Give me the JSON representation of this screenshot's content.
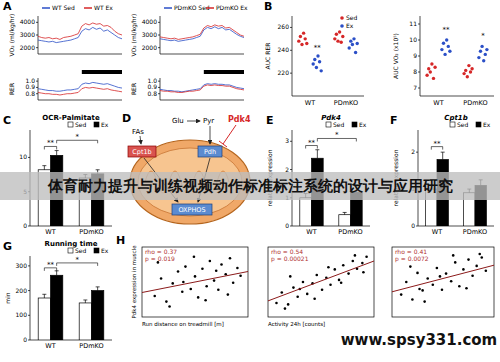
{
  "overlay": {
    "banner": "体育耐力提升与训练视频动作标准标注系统的设计与应用研究",
    "watermark": "www.spsy331.com"
  },
  "diagram": {
    "panel": "D",
    "fas": "FAs",
    "glu": "Glu",
    "pyr": "Pyr",
    "pdk4": "Pdk4",
    "cpt1b": "Cpt1b",
    "pdh": "Pdh",
    "oxphos": "OXPHOS"
  },
  "chart_data": [
    {
      "type": "line",
      "panel": "A",
      "y_label": "VO₂ (ml/kg/hr)",
      "x": [
        0,
        1,
        2,
        3,
        4,
        5,
        6,
        7,
        8,
        9,
        10,
        11,
        12,
        13,
        14,
        15,
        16,
        17,
        18,
        19,
        20,
        21,
        22,
        23
      ],
      "xlim": [
        0,
        23
      ],
      "ylim": [
        1500,
        4500
      ],
      "yticks": [
        2000,
        3000,
        4000
      ],
      "tick_labels": "y",
      "legend": "top",
      "series": [
        {
          "name": "WT Sed",
          "color": "#2b4fc7",
          "values": [
            2600,
            2550,
            2500,
            2450,
            2500,
            2400,
            2450,
            2500,
            2550,
            2600,
            2700,
            2800,
            3300,
            3500,
            3400,
            3600,
            3450,
            3550,
            3300,
            3400,
            3200,
            3000,
            2800,
            2700
          ]
        },
        {
          "name": "WT Ex",
          "color": "#d62728",
          "values": [
            2900,
            2800,
            2750,
            2800,
            2700,
            2750,
            2650,
            2800,
            2850,
            2900,
            3000,
            3100,
            3700,
            3900,
            3800,
            3950,
            3850,
            3900,
            3700,
            3750,
            3600,
            3300,
            3100,
            3000
          ]
        }
      ]
    },
    {
      "type": "line",
      "y_label": "RER",
      "x": [
        0,
        1,
        2,
        3,
        4,
        5,
        6,
        7,
        8,
        9,
        10,
        11,
        12,
        13,
        14,
        15,
        16,
        17,
        18,
        19,
        20,
        21,
        22,
        23
      ],
      "xlim": [
        0,
        23
      ],
      "ylim": [
        0.7,
        1.05
      ],
      "yticks": [
        0.8,
        0.9,
        {
          "value": 1,
          "label": "1.0"
        }
      ],
      "tick_labels": "y",
      "dark_phase": [
        12,
        23
      ],
      "series": [
        {
          "color": "#2b4fc7",
          "values": [
            0.88,
            0.87,
            0.86,
            0.85,
            0.85,
            0.84,
            0.84,
            0.85,
            0.86,
            0.86,
            0.87,
            0.88,
            0.95,
            0.97,
            0.96,
            0.98,
            0.97,
            0.96,
            0.95,
            0.96,
            0.94,
            0.92,
            0.9,
            0.89
          ]
        },
        {
          "color": "#d62728",
          "values": [
            0.82,
            0.81,
            0.8,
            0.8,
            0.79,
            0.79,
            0.78,
            0.79,
            0.8,
            0.8,
            0.81,
            0.82,
            0.88,
            0.9,
            0.89,
            0.9,
            0.89,
            0.88,
            0.87,
            0.88,
            0.86,
            0.85,
            0.84,
            0.83
          ]
        }
      ]
    },
    {
      "type": "line",
      "y_label": "VO₂ (ml/kg/hr)",
      "x": [
        0,
        1,
        2,
        3,
        4,
        5,
        6,
        7,
        8,
        9,
        10,
        11,
        12,
        13,
        14,
        15,
        16,
        17,
        18,
        19,
        20,
        21,
        22,
        23
      ],
      "xlim": [
        0,
        23
      ],
      "ylim": [
        1500,
        4500
      ],
      "yticks": [
        2000,
        3000,
        4000
      ],
      "tick_labels": "y",
      "legend": "top",
      "series": [
        {
          "name": "PDmKO Sed",
          "color": "#2b4fc7",
          "values": [
            2700,
            2650,
            2600,
            2550,
            2600,
            2500,
            2550,
            2600,
            2650,
            2700,
            2800,
            2900,
            3400,
            3600,
            3500,
            3650,
            3500,
            3600,
            3400,
            3450,
            3250,
            3050,
            2900,
            2800
          ]
        },
        {
          "name": "PDmKO Ex",
          "color": "#d62728",
          "values": [
            2850,
            2800,
            2750,
            2700,
            2750,
            2650,
            2700,
            2750,
            2800,
            2850,
            2950,
            3050,
            3550,
            3750,
            3650,
            3800,
            3700,
            3750,
            3550,
            3600,
            3400,
            3200,
            3000,
            2900
          ]
        }
      ]
    },
    {
      "type": "line",
      "y_label": "RER",
      "x": [
        0,
        1,
        2,
        3,
        4,
        5,
        6,
        7,
        8,
        9,
        10,
        11,
        12,
        13,
        14,
        15,
        16,
        17,
        18,
        19,
        20,
        21,
        22,
        23
      ],
      "xlim": [
        0,
        23
      ],
      "ylim": [
        0.7,
        1.05
      ],
      "yticks": [
        0.8,
        0.9,
        {
          "value": 1,
          "label": "1.0"
        }
      ],
      "tick_labels": "y",
      "dark_phase": [
        12,
        23
      ],
      "series": [
        {
          "color": "#2b4fc7",
          "values": [
            0.87,
            0.86,
            0.85,
            0.85,
            0.84,
            0.84,
            0.83,
            0.84,
            0.85,
            0.86,
            0.87,
            0.88,
            0.94,
            0.96,
            0.95,
            0.96,
            0.95,
            0.95,
            0.94,
            0.94,
            0.92,
            0.9,
            0.89,
            0.88
          ]
        },
        {
          "color": "#d62728",
          "values": [
            0.85,
            0.84,
            0.84,
            0.83,
            0.83,
            0.82,
            0.82,
            0.83,
            0.84,
            0.84,
            0.85,
            0.86,
            0.92,
            0.94,
            0.93,
            0.94,
            0.93,
            0.93,
            0.92,
            0.92,
            0.9,
            0.88,
            0.87,
            0.86
          ]
        }
      ]
    },
    {
      "type": "dot",
      "panel": "B",
      "y_label": "AUC RER",
      "categories": [
        "WT",
        "PDmKO"
      ],
      "ylim": [
        200,
        270
      ],
      "yticks": [
        220,
        240,
        260
      ],
      "legend": "top-right",
      "series": [
        {
          "name": "Sed",
          "color": "#d62728",
          "values": [
            [
              248,
              252,
              245,
              255,
              250,
              246
            ],
            [
              250,
              254,
              248,
              256,
              247,
              252
            ]
          ]
        },
        {
          "name": "Ex",
          "color": "#2b4fc7",
          "values": [
            [
              228,
              232,
              225,
              235,
              230,
              222
            ],
            [
              242,
              248,
              245,
              250,
              238,
              246
            ]
          ]
        }
      ],
      "annotations": [
        {
          "text": "**",
          "group": 0,
          "series": 1,
          "y": 240
        }
      ]
    },
    {
      "type": "dot",
      "y_label": "AUC VO₂ (x10⁵)",
      "categories": [
        "WT",
        "PDmKO"
      ],
      "ylim": [
        6.5,
        11.5
      ],
      "yticks": [
        7,
        8,
        9,
        10,
        11
      ],
      "series": [
        {
          "name": "Sed",
          "color": "#d62728",
          "values": [
            [
              7.8,
              8.2,
              8.0,
              8.5,
              7.6,
              8.3
            ],
            [
              7.9,
              8.1,
              7.7,
              8.4,
              8.0,
              8.2
            ]
          ]
        },
        {
          "name": "Ex",
          "color": "#2b4fc7",
          "values": [
            [
              9.4,
              9.8,
              9.1,
              10.0,
              9.6,
              9.3
            ],
            [
              8.9,
              9.3,
              9.6,
              8.7,
              9.1,
              9.4
            ]
          ]
        }
      ],
      "annotations": [
        {
          "text": "**",
          "group": 0,
          "series": 1,
          "y": 10.5
        },
        {
          "text": "*",
          "group": 1,
          "series": 1,
          "y": 10.1
        }
      ]
    },
    {
      "type": "bar",
      "panel": "C",
      "title": "OCR-Palmitate",
      "categories": [
        "WT",
        "PDmKO"
      ],
      "ylim": [
        0,
        14
      ],
      "yticks": [
        0,
        5,
        10
      ],
      "legend": "top-right",
      "series": [
        {
          "name": "Sed",
          "color": "#ffffff",
          "values": [
            8.2,
            7.0
          ],
          "errors": [
            0.6,
            0.5
          ]
        },
        {
          "name": "Ex",
          "color": "#000000",
          "values": [
            10.3,
            7.6
          ],
          "errors": [
            0.7,
            0.6
          ]
        }
      ],
      "annotations": [
        {
          "text": "**",
          "from": [
            0,
            0
          ],
          "to": [
            0,
            1
          ],
          "y": 11.6
        },
        {
          "text": "*",
          "from": [
            0,
            1
          ],
          "to": [
            1,
            1
          ],
          "y": 12.5
        }
      ]
    },
    {
      "type": "bar",
      "panel": "E",
      "title": "Pdk4",
      "y_label": "relative expression",
      "categories": [
        "WT",
        "PDmKO"
      ],
      "ylim": [
        0,
        3.4
      ],
      "yticks": [
        0,
        1,
        2,
        3
      ],
      "legend": "top-right",
      "series": [
        {
          "name": "Sed",
          "color": "#ffffff",
          "values": [
            1.0,
            0.4
          ],
          "errors": [
            0.15,
            0.08
          ]
        },
        {
          "name": "Ex",
          "color": "#000000",
          "values": [
            2.4,
            1.2
          ],
          "errors": [
            0.3,
            0.2
          ]
        }
      ],
      "annotations": [
        {
          "text": "**",
          "from": [
            0,
            0
          ],
          "to": [
            0,
            1
          ],
          "y": 2.85
        },
        {
          "text": "*",
          "from": [
            0,
            1
          ],
          "to": [
            1,
            1
          ],
          "y": 3.1
        }
      ]
    },
    {
      "type": "bar",
      "panel": "F",
      "title": "Cpt1b",
      "y_label": "relative expression",
      "categories": [
        "WT",
        "PDmKO"
      ],
      "ylim": [
        0,
        2.6
      ],
      "yticks": [
        0,
        1,
        2
      ],
      "legend": "top-right",
      "series": [
        {
          "name": "Sed",
          "color": "#ffffff",
          "values": [
            1.0,
            0.9
          ],
          "errors": [
            0.12,
            0.1
          ]
        },
        {
          "name": "Ex",
          "color": "#000000",
          "values": [
            1.8,
            1.1
          ],
          "errors": [
            0.2,
            0.15
          ]
        }
      ],
      "annotations": [
        {
          "text": "**",
          "from": [
            0,
            0
          ],
          "to": [
            0,
            1
          ],
          "y": 2.15
        }
      ]
    },
    {
      "type": "bar",
      "panel": "G",
      "title": "Running time",
      "y_label": "min",
      "categories": [
        "WT",
        "PDmKO"
      ],
      "ylim": [
        0,
        340
      ],
      "yticks": [
        0,
        100,
        200,
        300
      ],
      "legend": "top-right",
      "series": [
        {
          "name": "Sed",
          "color": "#ffffff",
          "values": [
            170,
            150
          ],
          "errors": [
            15,
            12
          ]
        },
        {
          "name": "Ex",
          "color": "#000000",
          "values": [
            262,
            200
          ],
          "errors": [
            18,
            15
          ]
        }
      ],
      "annotations": [
        {
          "text": "**",
          "from": [
            0,
            0
          ],
          "to": [
            0,
            1
          ],
          "y": 292
        },
        {
          "text": "*",
          "from": [
            0,
            1
          ],
          "to": [
            1,
            1
          ],
          "y": 312
        }
      ]
    },
    {
      "type": "scatter",
      "panel": "H",
      "x_label": "Run distance on treadmill [m]",
      "y_label": "Pdk4 expression in muscle",
      "xlim": [
        0,
        10
      ],
      "ylim": [
        0,
        10
      ],
      "tick_labels": false,
      "color": "#000000",
      "x": [
        1.2,
        1.8,
        2.3,
        2.9,
        3.4,
        3.8,
        4.1,
        4.6,
        5.0,
        5.3,
        5.7,
        6.1,
        6.4,
        6.8,
        7.2,
        7.5,
        7.9,
        8.3,
        8.6,
        9.0,
        1.5,
        2.6,
        3.9,
        4.9,
        6.0,
        7.0,
        8.1,
        9.3
      ],
      "y": [
        3.0,
        5.5,
        2.2,
        4.8,
        6.5,
        3.6,
        7.2,
        4.0,
        5.8,
        2.8,
        6.9,
        4.4,
        8.0,
        5.2,
        3.9,
        7.5,
        6.1,
        8.4,
        4.9,
        7.0,
        7.8,
        1.5,
        5.0,
        8.6,
        2.4,
        6.6,
        3.2,
        5.9
      ],
      "trend": {
        "x": [
          0,
          10
        ],
        "y": [
          3.5,
          6.5
        ]
      },
      "stats": [
        "rho = 0.37",
        "p = 0.019"
      ]
    },
    {
      "type": "scatter",
      "x_label": "Activity 24h [counts]",
      "xlim": [
        0,
        10
      ],
      "ylim": [
        0,
        10
      ],
      "tick_labels": false,
      "color": "#000000",
      "x": [
        0.8,
        1.3,
        1.9,
        2.4,
        2.8,
        3.3,
        3.7,
        4.2,
        4.6,
        5.1,
        5.5,
        5.9,
        6.3,
        6.7,
        7.1,
        7.6,
        8.0,
        8.4,
        8.9,
        9.3,
        1.6,
        3.0,
        4.4,
        5.7,
        6.9,
        8.2,
        9.0,
        2.1
      ],
      "y": [
        2.0,
        3.5,
        1.8,
        4.2,
        2.9,
        5.0,
        3.3,
        4.8,
        6.0,
        3.9,
        5.6,
        4.6,
        6.8,
        5.3,
        7.4,
        6.2,
        8.0,
        6.9,
        7.7,
        8.6,
        1.2,
        4.0,
        2.6,
        7.1,
        4.9,
        8.8,
        6.4,
        5.8
      ],
      "trend": {
        "x": [
          0,
          10
        ],
        "y": [
          2.3,
          8.0
        ]
      },
      "stats": [
        "rho = 0.54",
        "p = 0.00021"
      ]
    },
    {
      "type": "scatter",
      "xlim": [
        0,
        10
      ],
      "ylim": [
        0,
        10
      ],
      "tick_labels": false,
      "color": "#000000",
      "x": [
        0.9,
        1.4,
        2.0,
        2.5,
        3.0,
        3.5,
        4.0,
        4.4,
        4.9,
        5.3,
        5.8,
        6.2,
        6.6,
        7.0,
        7.5,
        7.9,
        8.3,
        8.8,
        9.2,
        1.8,
        3.2,
        4.7,
        6.0,
        7.3,
        8.6,
        2.7
      ],
      "y": [
        3.2,
        5.0,
        2.5,
        6.3,
        3.8,
        5.5,
        4.6,
        7.0,
        3.9,
        6.2,
        5.1,
        7.8,
        4.4,
        6.8,
        8.2,
        5.9,
        7.3,
        8.5,
        6.6,
        7.2,
        2.2,
        5.8,
        8.8,
        4.1,
        9.0,
        4.0
      ],
      "trend": {
        "x": [
          0,
          10
        ],
        "y": [
          3.6,
          7.4
        ]
      },
      "stats": [
        "rho = 0.41",
        "p = 0.0072"
      ]
    }
  ]
}
